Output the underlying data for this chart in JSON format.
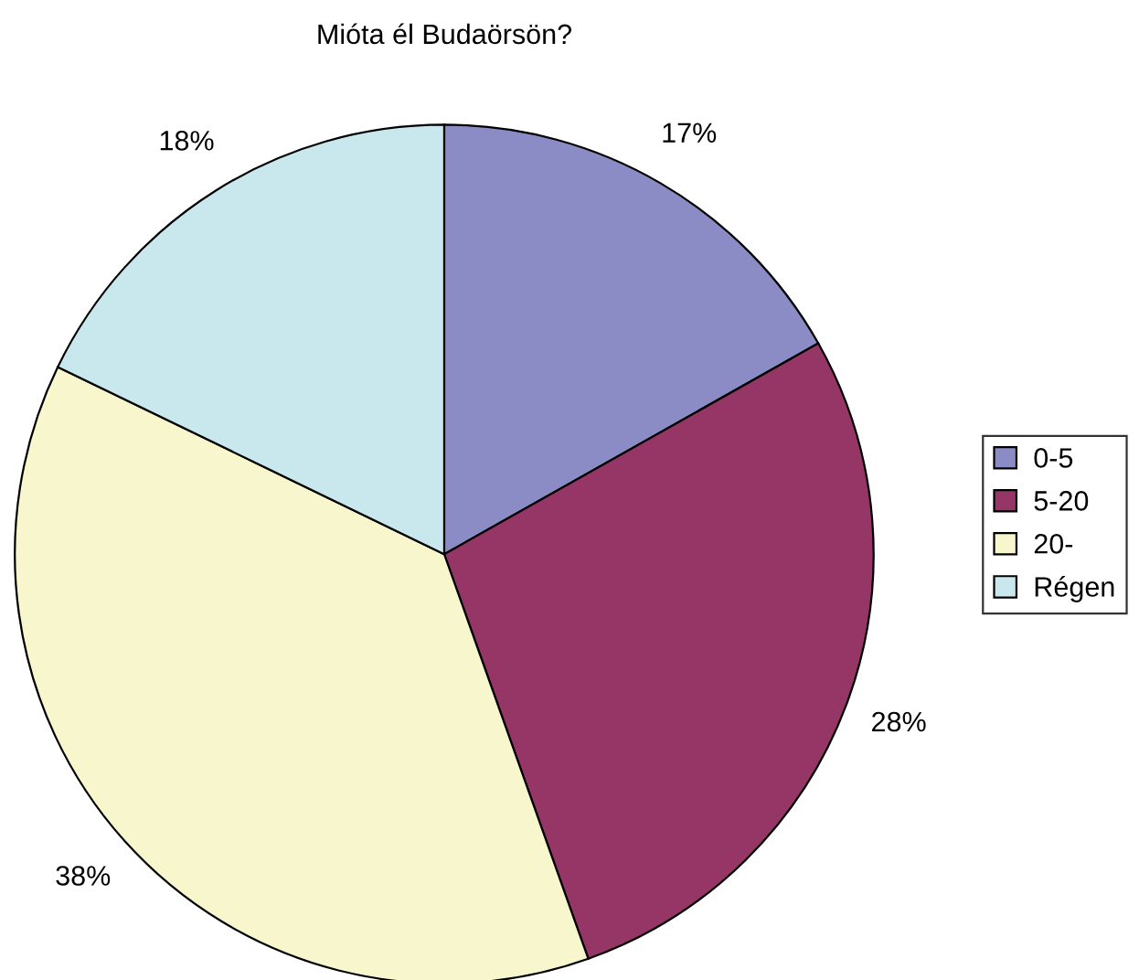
{
  "chart_data": {
    "type": "pie",
    "title": "Mióta él Budaörsön?",
    "categories": [
      "0-5",
      "5-20",
      "20-",
      "Régen"
    ],
    "values": [
      17,
      28,
      38,
      18
    ],
    "colors": [
      "#8b8cc6",
      "#953667",
      "#f8f6cc",
      "#c8e8ee"
    ],
    "value_labels": [
      "17%",
      "28%",
      "38%",
      "18%"
    ],
    "legend": "right"
  }
}
